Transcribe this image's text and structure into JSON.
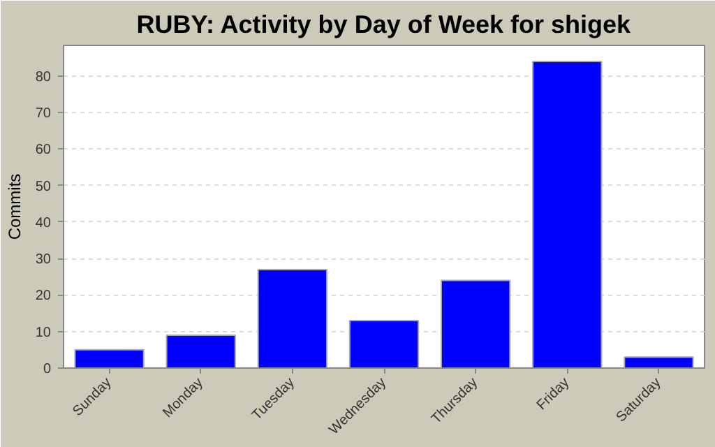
{
  "chart_data": {
    "type": "bar",
    "title": "RUBY: Activity by Day of Week for shigek",
    "ylabel": "Commits",
    "categories": [
      "Sunday",
      "Monday",
      "Tuesday",
      "Wednesday",
      "Thursday",
      "Friday",
      "Saturday"
    ],
    "values": [
      5,
      9,
      27,
      13,
      24,
      84,
      3
    ],
    "color": "#0000ff",
    "ylim": [
      0,
      88.4
    ],
    "yticks": [
      0,
      10,
      20,
      30,
      40,
      50,
      60,
      70,
      80
    ],
    "grid": "y"
  }
}
